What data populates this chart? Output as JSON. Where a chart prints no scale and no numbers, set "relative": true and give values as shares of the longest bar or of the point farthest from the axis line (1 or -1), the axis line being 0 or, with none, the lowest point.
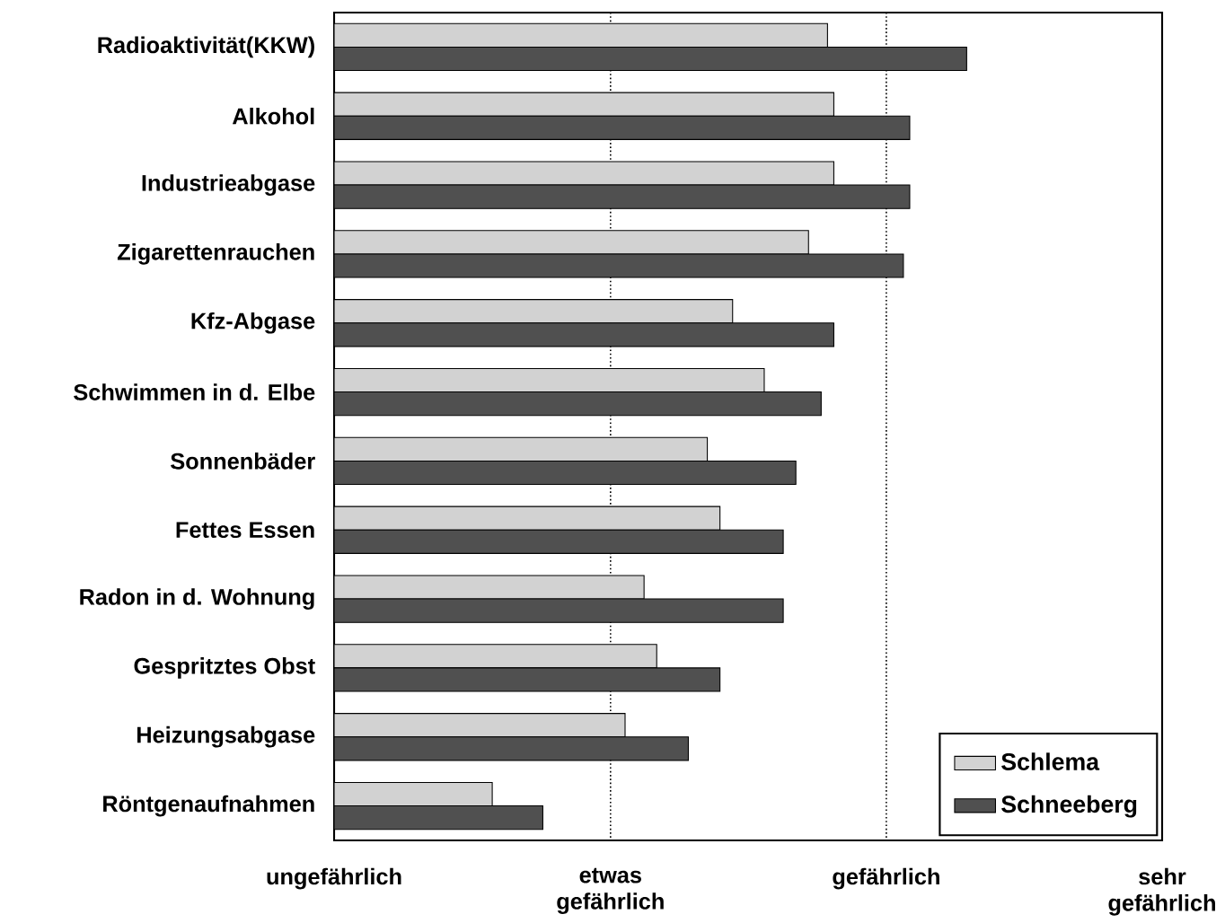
{
  "chart_data": {
    "type": "bar",
    "orientation": "horizontal",
    "relative": true,
    "categories": [
      "Radioaktivität(KKW)",
      "Alkohol",
      "Industrieabgase",
      "Zigarettenrauchen",
      "Kfz-Abgase",
      "Schwimmen in d. Elbe",
      "Sonnenbäder",
      "Fettes Essen",
      "Radon in d. Wohnung",
      "Gespritztes Obst",
      "Heizungsabgase",
      "Röntgenaufnahmen"
    ],
    "series": [
      {
        "name": "Schlema",
        "color": "#d2d2d2",
        "values": [
          0.78,
          0.79,
          0.79,
          0.75,
          0.63,
          0.68,
          0.59,
          0.61,
          0.49,
          0.51,
          0.46,
          0.25
        ]
      },
      {
        "name": "Schneeberg",
        "color": "#505050",
        "values": [
          1,
          0.91,
          0.91,
          0.9,
          0.79,
          0.77,
          0.73,
          0.71,
          0.71,
          0.61,
          0.56,
          0.33
        ]
      }
    ],
    "ref_lines": [
      {
        "axis": "x",
        "value": 0.437,
        "label": "etwas gefährlich",
        "line_style": "dotted"
      },
      {
        "axis": "x",
        "value": 0.873,
        "label": "gefährlich",
        "line_style": "dotted"
      }
    ],
    "annotations": [
      "ungefährlich",
      "sehr gefährlich"
    ],
    "legend": "bottom right"
  }
}
